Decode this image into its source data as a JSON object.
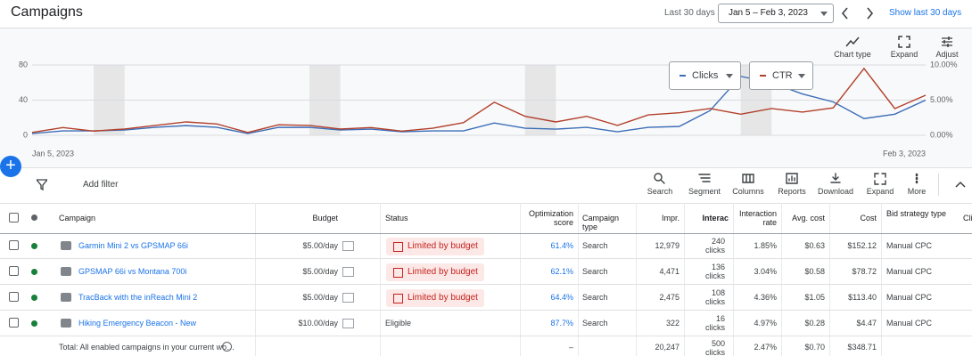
{
  "header": {
    "title": "Campaigns",
    "range_label": "Last 30 days",
    "date_range": "Jan 5 – Feb 3, 2023",
    "show_link": "Show last 30 days"
  },
  "chart_controls": {
    "chart_type": "Chart type",
    "expand": "Expand",
    "adjust": "Adjust"
  },
  "chart_data": {
    "type": "line",
    "categories": [
      "Jan 5, 2023",
      null,
      null,
      null,
      null,
      null,
      null,
      null,
      null,
      null,
      null,
      null,
      null,
      null,
      null,
      null,
      null,
      null,
      null,
      null,
      null,
      null,
      null,
      null,
      null,
      null,
      null,
      null,
      null,
      "Feb 3, 2023"
    ],
    "series": [
      {
        "name": "Clicks",
        "color": "#3c6db8",
        "values": [
          2,
          5,
          5,
          6,
          9,
          11,
          9,
          2,
          9,
          9,
          6,
          7,
          4,
          5,
          5,
          14,
          8,
          7,
          9,
          4,
          9,
          10,
          28,
          67,
          60,
          47,
          38,
          19,
          24,
          40
        ]
      },
      {
        "name": "CTR",
        "color": "#b2412b",
        "axis": "y2",
        "values": [
          0.4,
          1.1,
          0.6,
          0.9,
          1.4,
          1.9,
          1.6,
          0.4,
          1.5,
          1.4,
          0.9,
          1.1,
          0.6,
          1.0,
          1.8,
          4.7,
          2.7,
          1.9,
          2.7,
          1.4,
          2.9,
          3.2,
          3.8,
          3.0,
          3.8,
          3.3,
          3.9,
          9.5,
          3.8,
          5.7
        ]
      }
    ],
    "ylim": [
      0,
      80
    ],
    "yticks": [
      0,
      40,
      80
    ],
    "y2lim": [
      0,
      10
    ],
    "y2ticks": [
      {
        "value": 0,
        "label": "0.00%"
      },
      {
        "value": 5,
        "label": "5.00%"
      },
      {
        "value": 10,
        "label": "10.00%"
      }
    ],
    "grid": true
  },
  "toolbar": {
    "add_filter": "Add filter",
    "buttons": [
      "Search",
      "Segment",
      "Columns",
      "Reports",
      "Download",
      "Expand",
      "More"
    ]
  },
  "table": {
    "columns": [
      "Campaign",
      "Budget",
      "Status",
      "Optimization score",
      "Campaign type",
      "Impr.",
      "Interac",
      "Interaction rate",
      "Avg. cost",
      "Cost",
      "Bid strategy type",
      "Cli"
    ],
    "rows": [
      [
        "Garmin Mini 2 vs GPSMAP 66i",
        "$5.00/day",
        "Limited by budget",
        "61.4%",
        "Search",
        "12,979",
        "240 clicks",
        "1.85%",
        "$0.63",
        "$152.12",
        "Manual CPC"
      ],
      [
        "GPSMAP 66i vs Montana 700i",
        "$5.00/day",
        "Limited by budget",
        "62.1%",
        "Search",
        "4,471",
        "136 clicks",
        "3.04%",
        "$0.58",
        "$78.72",
        "Manual CPC"
      ],
      [
        "TracBack with the inReach Mini 2",
        "$5.00/day",
        "Limited by budget",
        "64.4%",
        "Search",
        "2,475",
        "108 clicks",
        "4.36%",
        "$1.05",
        "$113.40",
        "Manual CPC"
      ],
      [
        "Hiking Emergency Beacon - New",
        "$10.00/day",
        "Eligible",
        "87.7%",
        "Search",
        "322",
        "16 clicks",
        "4.97%",
        "$0.28",
        "$4.47",
        "Manual CPC"
      ]
    ],
    "total": [
      "Total: All enabled campaigns in your current wo…",
      "–",
      "20,247",
      "500 clicks",
      "2.47%",
      "$0.70",
      "$348.71"
    ]
  }
}
